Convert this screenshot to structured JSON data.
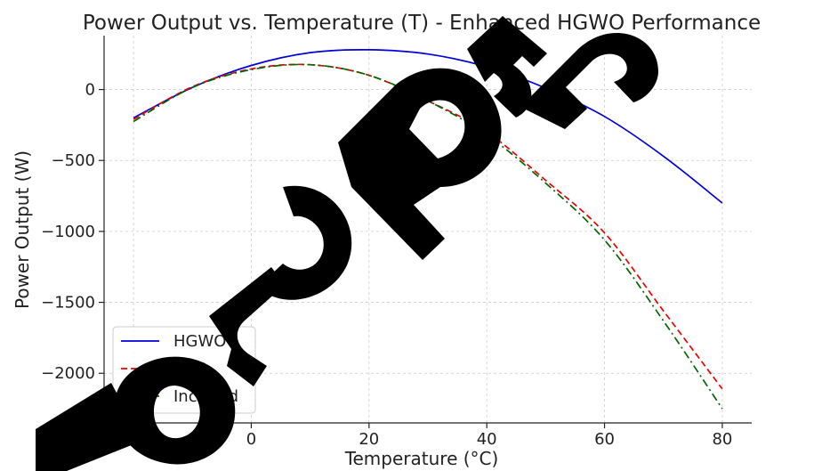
{
  "chart_data": {
    "type": "line",
    "title": "Power Output vs. Temperature (T) - Enhanced HGWO Performance",
    "xlabel": "Temperature (°C)",
    "ylabel": "Power Output (W)",
    "xlim": [
      -25,
      85
    ],
    "ylim": [
      -2350,
      380
    ],
    "xticks": [
      -20,
      0,
      20,
      40,
      60,
      80
    ],
    "yticks": [
      0,
      -500,
      -1000,
      -1500,
      -2000
    ],
    "xtick_labels": [
      "−20",
      "0",
      "20",
      "40",
      "60",
      "80"
    ],
    "ytick_labels": [
      "0",
      "−500",
      "−1000",
      "−1500",
      "−2000"
    ],
    "grid": true,
    "legend_position": "lower-left",
    "x": [
      -20,
      -10,
      0,
      10,
      20,
      30,
      40,
      50,
      60,
      70,
      80
    ],
    "series": [
      {
        "name": "HGWO",
        "color": "#0000dd",
        "style": "solid",
        "values": [
          -200,
          15,
          170,
          260,
          280,
          250,
          160,
          10,
          -190,
          -470,
          -800
        ]
      },
      {
        "name": "P&O",
        "color": "#ee0000",
        "style": "dashed",
        "values": [
          -210,
          20,
          145,
          175,
          100,
          -80,
          -300,
          -640,
          -1010,
          -1560,
          -2110
        ]
      },
      {
        "name": "IncCond",
        "color": "#006600",
        "style": "dashdot",
        "values": [
          -225,
          15,
          140,
          175,
          100,
          -80,
          -320,
          -660,
          -1060,
          -1630,
          -2250
        ]
      }
    ]
  }
}
